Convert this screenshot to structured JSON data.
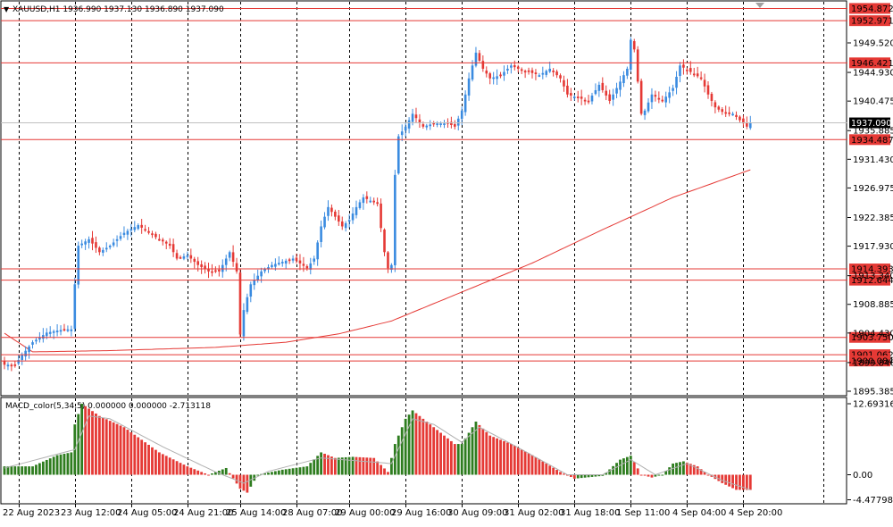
{
  "colors": {
    "bull": "#3a8be0",
    "bear": "#e53935",
    "level": "#e53935",
    "ma": "#e53935",
    "macd_bull": "#2e7d1f",
    "macd_bear": "#e53935",
    "signal": "#b0b0b0",
    "grid": "#000000",
    "label_text": "#ffffff",
    "current_bg": "#000000"
  },
  "header": {
    "symbol_info": "XAUUSD,H1  1936.990 1937.130 1936.890 1937.090"
  },
  "indicator": {
    "label": "MACD_color(5,34,5) 0.000000 0.000000 -2.713118"
  },
  "chart_data": [
    {
      "type": "candlestick",
      "symbol": "XAUUSD",
      "timeframe": "H1",
      "ohlc_last": {
        "open": 1936.99,
        "high": 1937.13,
        "low": 1936.89,
        "close": 1937.09
      },
      "price_ticks": [
        "1949.520",
        "1944.930",
        "1940.475",
        "1935.885",
        "1931.430",
        "1926.975",
        "1922.385",
        "1917.930",
        "1913.340",
        "1908.885",
        "1904.430",
        "1899.840",
        "1895.385"
      ],
      "ylim": [
        1895.385,
        1957.0
      ],
      "time_labels": [
        "22 Aug 2023",
        "23 Aug 12:00",
        "24 Aug 05:00",
        "24 Aug 21:00",
        "25 Aug 14:00",
        "28 Aug 07:00",
        "29 Aug 00:00",
        "29 Aug 16:00",
        "30 Aug 09:00",
        "31 Aug 02:00",
        "31 Aug 18:00",
        "1 Sep 11:00",
        "4 Sep 04:00",
        "4 Sep 20:00"
      ],
      "levels": [
        "1954.872",
        "1952.971",
        "1946.421",
        "1934.487",
        "1914.393",
        "1912.644",
        "1903.750",
        "1901.062",
        "1900.084"
      ],
      "current_price": "1937.090",
      "close_anchors": [
        [
          0,
          1899.5
        ],
        [
          3,
          1899.5
        ],
        [
          5,
          1901
        ],
        [
          8,
          1903
        ],
        [
          12,
          1904.5
        ],
        [
          17,
          1905
        ],
        [
          19,
          1905
        ],
        [
          20,
          1912
        ],
        [
          21,
          1918
        ],
        [
          24,
          1919
        ],
        [
          27,
          1917
        ],
        [
          30,
          1918
        ],
        [
          34,
          1920
        ],
        [
          38,
          1921.2
        ],
        [
          41,
          1920
        ],
        [
          44,
          1919
        ],
        [
          47,
          1918
        ],
        [
          49,
          1916
        ],
        [
          52,
          1916.5
        ],
        [
          55,
          1915
        ],
        [
          58,
          1914
        ],
        [
          61,
          1914
        ],
        [
          64,
          1917
        ],
        [
          66,
          1914
        ],
        [
          67,
          1904.2
        ],
        [
          68,
          1908
        ],
        [
          70,
          1912
        ],
        [
          73,
          1914
        ],
        [
          76,
          1915
        ],
        [
          79,
          1915.5
        ],
        [
          82,
          1916
        ],
        [
          86,
          1914.5
        ],
        [
          88,
          1916
        ],
        [
          90,
          1921
        ],
        [
          92,
          1924
        ],
        [
          94,
          1922.5
        ],
        [
          96,
          1921
        ],
        [
          98,
          1922
        ],
        [
          100,
          1924
        ],
        [
          102,
          1925.5
        ],
        [
          104,
          1925
        ],
        [
          106,
          1924.5
        ],
        [
          108,
          1917
        ],
        [
          109,
          1914.5
        ],
        [
          110,
          1915
        ],
        [
          111,
          1929
        ],
        [
          112,
          1935
        ],
        [
          114,
          1936.5
        ],
        [
          116,
          1938.5
        ],
        [
          119,
          1936.5
        ],
        [
          122,
          1937
        ],
        [
          126,
          1937
        ],
        [
          128,
          1936.5
        ],
        [
          130,
          1939
        ],
        [
          132,
          1944
        ],
        [
          134,
          1948
        ],
        [
          136,
          1945.5
        ],
        [
          138,
          1944
        ],
        [
          141,
          1944.5
        ],
        [
          144,
          1946
        ],
        [
          146,
          1945.5
        ],
        [
          149,
          1945
        ],
        [
          152,
          1944.5
        ],
        [
          155,
          1945.5
        ],
        [
          158,
          1944
        ],
        [
          160,
          1941.5
        ],
        [
          163,
          1941
        ],
        [
          166,
          1940.5
        ],
        [
          169,
          1943
        ],
        [
          172,
          1940.5
        ],
        [
          175,
          1943.5
        ],
        [
          177,
          1945.5
        ],
        [
          178,
          1950
        ],
        [
          179,
          1948.5
        ],
        [
          180,
          1943.5
        ],
        [
          181,
          1938.5
        ],
        [
          182,
          1939
        ],
        [
          184,
          1941.5
        ],
        [
          187,
          1940.5
        ],
        [
          190,
          1942.5
        ],
        [
          192,
          1946
        ],
        [
          195,
          1945
        ],
        [
          198,
          1944
        ],
        [
          200,
          1941.5
        ],
        [
          202,
          1939.5
        ],
        [
          204,
          1938.8
        ],
        [
          207,
          1938.5
        ],
        [
          209,
          1937.5
        ],
        [
          211,
          1936.5
        ],
        [
          212,
          1937.09
        ]
      ],
      "ma_anchors": [
        [
          0,
          1904.4
        ],
        [
          8,
          1901.5
        ],
        [
          30,
          1901.7
        ],
        [
          60,
          1902.2
        ],
        [
          80,
          1903
        ],
        [
          95,
          1904.3
        ],
        [
          110,
          1906.3
        ],
        [
          130,
          1910.8
        ],
        [
          150,
          1915.3
        ],
        [
          170,
          1920.5
        ],
        [
          190,
          1925.5
        ],
        [
          212,
          1929.8
        ]
      ]
    },
    {
      "type": "histogram",
      "name": "MACD_color(5,34,5)",
      "values_label": "0.000000 0.000000 -2.713118",
      "y_ticks": [
        "12.69316",
        "0.00",
        "-4.477983"
      ],
      "ylim": [
        -4.9,
        13.2
      ],
      "hist_anchors": [
        [
          0,
          1.5
        ],
        [
          8,
          1.5
        ],
        [
          15,
          3.5
        ],
        [
          19,
          4
        ],
        [
          20,
          9
        ],
        [
          22,
          12.7
        ],
        [
          27,
          10.5
        ],
        [
          34,
          8.5
        ],
        [
          44,
          4
        ],
        [
          52,
          1.5
        ],
        [
          58,
          0
        ],
        [
          63,
          1.2
        ],
        [
          67,
          -2.5
        ],
        [
          69,
          -3.2
        ],
        [
          72,
          0
        ],
        [
          79,
          0.9
        ],
        [
          86,
          1.5
        ],
        [
          90,
          4
        ],
        [
          94,
          3
        ],
        [
          99,
          3.2
        ],
        [
          105,
          3
        ],
        [
          109,
          0.5
        ],
        [
          111,
          5.5
        ],
        [
          114,
          10
        ],
        [
          116,
          11.5
        ],
        [
          122,
          8.5
        ],
        [
          128,
          5.5
        ],
        [
          130,
          5.5
        ],
        [
          134,
          9.5
        ],
        [
          138,
          7
        ],
        [
          144,
          5.5
        ],
        [
          150,
          3.5
        ],
        [
          158,
          0.5
        ],
        [
          162,
          -0.7
        ],
        [
          170,
          -0.2
        ],
        [
          175,
          2.7
        ],
        [
          178,
          3.4
        ],
        [
          181,
          0
        ],
        [
          184,
          -0.5
        ],
        [
          187,
          0
        ],
        [
          190,
          2
        ],
        [
          193,
          2.4
        ],
        [
          197,
          1.5
        ],
        [
          200,
          0
        ],
        [
          204,
          -1.5
        ],
        [
          208,
          -2.7
        ],
        [
          212,
          -2.71
        ]
      ],
      "signal_anchors": [
        [
          0,
          1.2
        ],
        [
          20,
          4.5
        ],
        [
          24,
          10.5
        ],
        [
          30,
          10
        ],
        [
          45,
          5
        ],
        [
          60,
          0.5
        ],
        [
          68,
          -1.5
        ],
        [
          75,
          0.6
        ],
        [
          90,
          3
        ],
        [
          110,
          2
        ],
        [
          116,
          10
        ],
        [
          122,
          9
        ],
        [
          130,
          5.8
        ],
        [
          135,
          8.5
        ],
        [
          145,
          5.2
        ],
        [
          160,
          0
        ],
        [
          170,
          0
        ],
        [
          178,
          2.7
        ],
        [
          185,
          0
        ],
        [
          194,
          2
        ],
        [
          204,
          -1
        ],
        [
          212,
          -2.7
        ]
      ]
    }
  ]
}
